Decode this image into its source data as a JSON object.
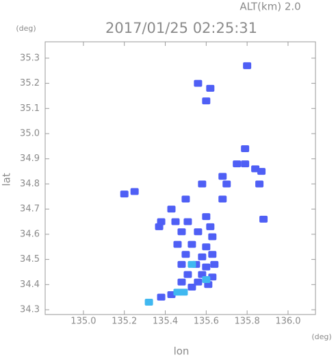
{
  "chart_data": {
    "type": "map",
    "title": "2017/01/25 02:25:31",
    "subtitle": "ALT(km) 2.0",
    "x_label": "lon",
    "y_label": "lat",
    "x_unit": "(deg)",
    "y_unit": "(deg)",
    "xlim": [
      134.813,
      136.134
    ],
    "ylim": [
      34.281,
      35.365
    ],
    "xticks": [
      {
        "value": 135.0,
        "label": "135.0"
      },
      135.2,
      135.4,
      135.6,
      135.8,
      {
        "value": 136.0,
        "label": "136.0"
      }
    ],
    "yticks": [
      34.3,
      34.4,
      34.5,
      34.6,
      34.7,
      34.8,
      34.9,
      {
        "value": 35.0,
        "label": "35.0"
      },
      35.1,
      35.2,
      35.3
    ],
    "series": [
      {
        "color": "#4f5ff5",
        "x": [
          135.8,
          135.56,
          135.62,
          135.6,
          135.79,
          135.79,
          135.75,
          135.84,
          135.87,
          135.86,
          135.68,
          135.7,
          135.58,
          135.68,
          135.2,
          135.25,
          135.38,
          135.37,
          135.45,
          135.51,
          135.6,
          135.62,
          135.48,
          135.56,
          135.63,
          135.46,
          135.53,
          135.6,
          135.5,
          135.58,
          135.63,
          135.48,
          135.55,
          135.6,
          135.64,
          135.51,
          135.58,
          135.63,
          135.48,
          135.56,
          135.61,
          135.53,
          135.43,
          135.38,
          135.88,
          135.5,
          135.43
        ],
        "values": [
          35.27,
          35.2,
          35.18,
          35.13,
          34.94,
          34.88,
          34.88,
          34.86,
          34.85,
          34.8,
          34.83,
          34.8,
          34.8,
          34.74,
          34.76,
          34.77,
          34.65,
          34.63,
          34.65,
          34.65,
          34.67,
          34.63,
          34.61,
          34.61,
          34.59,
          34.56,
          34.56,
          34.55,
          34.52,
          34.51,
          34.52,
          34.48,
          34.48,
          34.47,
          34.48,
          34.44,
          34.44,
          34.43,
          34.41,
          34.41,
          34.4,
          34.39,
          34.36,
          34.35,
          34.66,
          34.74,
          34.7
        ]
      },
      {
        "color": "#40b8f0",
        "x": [
          135.49,
          135.46,
          135.53,
          135.6,
          135.32
        ],
        "values": [
          34.37,
          34.37,
          34.48,
          34.42,
          34.33
        ]
      }
    ]
  }
}
